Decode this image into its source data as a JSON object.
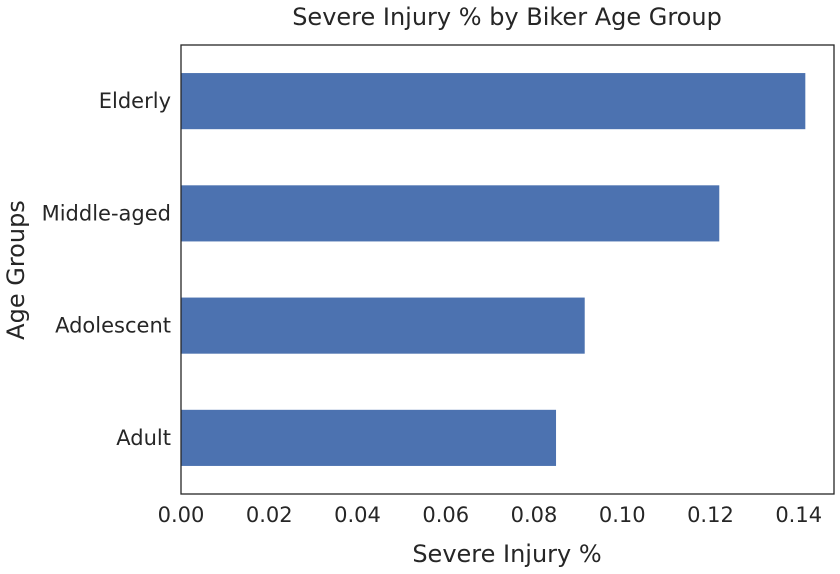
{
  "chart_data": {
    "type": "bar",
    "orientation": "horizontal",
    "title": "Severe Injury % by Biker Age Group",
    "xlabel": "Severe Injury %",
    "ylabel": "Age Groups",
    "categories": [
      "Adult",
      "Adolescent",
      "Middle-aged",
      "Elderly"
    ],
    "values": [
      0.085,
      0.0915,
      0.122,
      0.1415
    ],
    "xlim": [
      0.0,
      0.148
    ],
    "xticks": [
      0.0,
      0.02,
      0.04,
      0.06,
      0.08,
      0.1,
      0.12,
      0.14
    ],
    "xtick_labels": [
      "0.00",
      "0.02",
      "0.04",
      "0.06",
      "0.08",
      "0.10",
      "0.12",
      "0.14"
    ],
    "grid": false,
    "legend": "none",
    "bar_color": "#4c72b0"
  }
}
